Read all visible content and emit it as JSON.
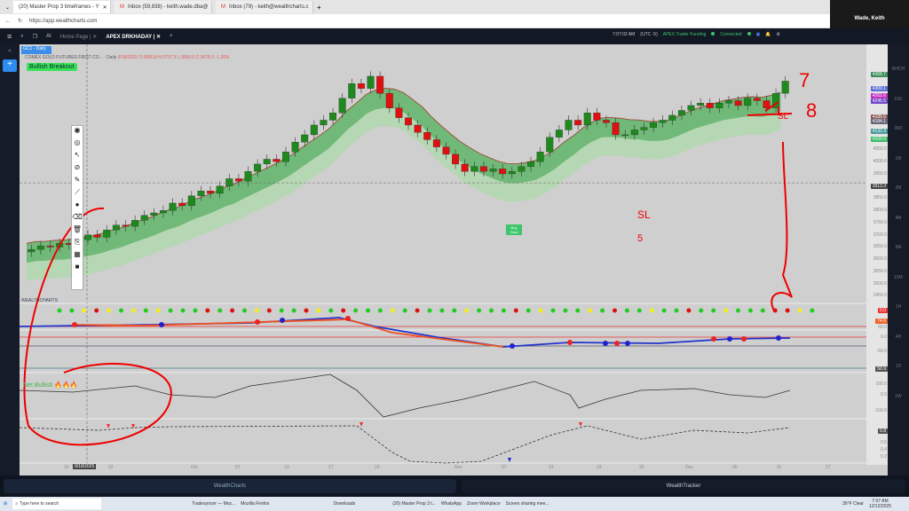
{
  "browser": {
    "tabs": [
      {
        "label": "(20) Master Prop 3 timeframes - Y"
      },
      {
        "label": "Inbox (59,838) - keith.wade.dba@"
      },
      {
        "label": "Inbox (79) - keith@wealthcharts.c"
      }
    ],
    "url": "https://app.wealthcharts.com"
  },
  "zoom": {
    "participant": "Wade, Keith"
  },
  "app": {
    "tabs": [
      {
        "label": "Home Page"
      },
      {
        "label": "APEX DRKHADAY"
      }
    ],
    "time": "7:07:02 AM",
    "tz": "(UTC -5)",
    "account": "APEX Trader Funding",
    "status": "Connected",
    "ai_label": "AI"
  },
  "chart": {
    "symbol_tab": "GC1 - Daily",
    "instrument": "COMEX GOLD FUTURES FIRST CO...",
    "interval": "Daily",
    "ohlc": "9/18/2025 O:3680.8 H:3707.3 L:3660.0 C:3678.3 -1.26%",
    "signal": "Bullish Breakout",
    "buy_zone": "Buy Zone",
    "crosshair_date": "9/18/2025",
    "price_labels": [
      "4050.0",
      "4000.0",
      "3950.0",
      "3850.0",
      "3800.0",
      "3750.0",
      "3700.0",
      "3650.0",
      "3600.0",
      "3550.0",
      "3500.0",
      "3450.0"
    ],
    "price_tags": [
      {
        "v": "4368.7",
        "c": "#3c8f5a"
      },
      {
        "v": "4309.1",
        "c": "#5c6fd6"
      },
      {
        "v": "4262.6",
        "c": "#c030c0"
      },
      {
        "v": "4245.5",
        "c": "#7048c8"
      },
      {
        "v": "4189.6",
        "c": "#8a5a5a"
      },
      {
        "v": "4184.1",
        "c": "#667"
      },
      {
        "v": "4132.3",
        "c": "#4a9a9a"
      },
      {
        "v": "4109.0",
        "c": "#3cba6a"
      },
      {
        "v": "3913.3",
        "c": "#444"
      }
    ],
    "indicator_tags": [
      {
        "v": "0.0",
        "c": "#e33"
      },
      {
        "v": "74.6",
        "c": "#f0622a"
      },
      {
        "v": "50.9",
        "c": "#555"
      },
      {
        "v": "0.8",
        "c": "#555"
      }
    ],
    "ind_labels": [
      "50.0",
      "0.0",
      "-50.0",
      "100.0",
      "0.0",
      "-100.0",
      "0.6",
      "0.4",
      "0.2"
    ],
    "net_label": "Net Bullish",
    "brand": "WEALTHCHARTS",
    "x_labels": [
      "16",
      "22",
      "Oct",
      "07",
      "13",
      "17",
      "23",
      "Nov",
      "07",
      "13",
      "19",
      "25",
      "Dec",
      "05",
      "11",
      "17"
    ],
    "timeframes": [
      "NHCH",
      "15D",
      "30D",
      "1M",
      "2M",
      "4M",
      "5M",
      "15M",
      "1H",
      "4H",
      "1D",
      "1W"
    ],
    "closes": [
      3640,
      3655,
      3650,
      3665,
      3660,
      3680,
      3700,
      3690,
      3720,
      3740,
      3735,
      3760,
      3780,
      3790,
      3800,
      3830,
      3820,
      3860,
      3880,
      3870,
      3900,
      3930,
      3920,
      3960,
      3990,
      4010,
      4000,
      4040,
      4080,
      4110,
      4150,
      4170,
      4200,
      4260,
      4320,
      4300,
      4350,
      4280,
      4220,
      4180,
      4150,
      4120,
      4090,
      4060,
      4030,
      3990,
      3960,
      3980,
      3960,
      3970,
      3950,
      3960,
      3980,
      4000,
      4040,
      4100,
      4130,
      4170,
      4150,
      4200,
      4170,
      4160,
      4110,
      4110,
      4130,
      4140,
      4160,
      4170,
      4190,
      4210,
      4230,
      4240,
      4220,
      4240,
      4250,
      4230,
      4260,
      4250,
      4220,
      4280,
      4330
    ]
  },
  "bottom": {
    "left_tab": "WealthCharts",
    "right_tab": "WealthTracker"
  },
  "taskbar": {
    "search": "Type here to search",
    "items": [
      "Tradesyncer — Moz...",
      "Mozilla Firefox",
      "Downloads",
      "(20) Master Prop 3 t...",
      "WhatsApp",
      "Zoom Workplace",
      "Screen sharing mee..."
    ],
    "weather": "39°F  Clear",
    "clock": "7:07 AM",
    "date": "12/12/2025"
  },
  "annotations": {
    "texts": [
      "7",
      "8",
      "SL",
      "SL",
      "5"
    ]
  }
}
